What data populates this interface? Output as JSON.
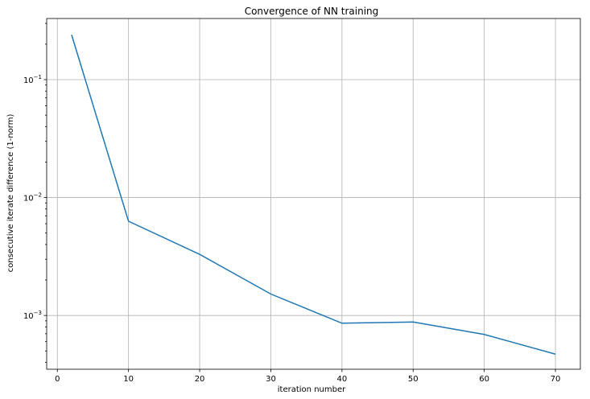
{
  "chart_data": {
    "type": "line",
    "title": "Convergence of NN training",
    "xlabel": "iteration number",
    "ylabel": "consecutive iterate difference (1-norm)",
    "yscale": "log",
    "grid": true,
    "xlim": [
      -1.5,
      73.5
    ],
    "ylim": [
      0.00035,
      0.33
    ],
    "xticks": [
      0,
      10,
      20,
      30,
      40,
      50,
      60,
      70
    ],
    "yticks": [
      {
        "value": 0.1,
        "base": "10",
        "exp": "−1"
      },
      {
        "value": 0.01,
        "base": "10",
        "exp": "−2"
      },
      {
        "value": 0.001,
        "base": "10",
        "exp": "−3"
      }
    ],
    "series": [
      {
        "color": "#1f77b4",
        "x": [
          2,
          10,
          20,
          30,
          40,
          50,
          60,
          70
        ],
        "y": [
          0.24,
          0.0063,
          0.0033,
          0.00152,
          0.00086,
          0.00088,
          0.00069,
          0.00047
        ]
      }
    ]
  }
}
